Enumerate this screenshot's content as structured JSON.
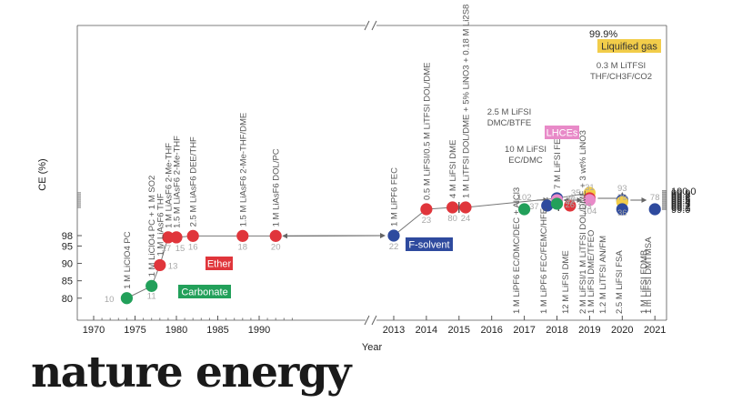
{
  "chart_data": {
    "type": "scatter",
    "xlabel": "Year",
    "ylabel": "CE (%)",
    "x_ticks_left": [
      "1970",
      "1975",
      "1980",
      "1985",
      "1990"
    ],
    "x_ticks_right": [
      "2013",
      "2014",
      "2015",
      "2016",
      "2017",
      "2018",
      "2019",
      "2020",
      "2021"
    ],
    "y_ticks_bottom": [
      "80",
      "85",
      "90",
      "95",
      "98"
    ],
    "y_ticks_top": [
      "99.0",
      "99.1",
      "99.2",
      "99.3",
      "99.4",
      "99.5",
      "99.6",
      "99.7",
      "99.8",
      "99.9",
      "100.0"
    ],
    "groups": [
      {
        "name": "Carbonate",
        "color": "#22a05a"
      },
      {
        "name": "Ether",
        "color": "#e0353b"
      },
      {
        "name": "F-solvent",
        "color": "#2e4a9e"
      },
      {
        "name": "LHCEs",
        "color": "#e88ac8"
      },
      {
        "name": "Liquified gas",
        "color": "#f2cd4a"
      }
    ],
    "points": [
      {
        "year": 1974,
        "ce": 80,
        "group": "Carbonate",
        "ref": "10",
        "label": "1 M LiClO4 PC"
      },
      {
        "year": 1977,
        "ce": 83.5,
        "group": "Carbonate",
        "ref": "11",
        "label": "1 M LiClO4 PC + 1 M SO2"
      },
      {
        "year": 1978,
        "ce": 89.5,
        "group": "Ether",
        "ref": "13",
        "label": "1 M LiAsF6 THF"
      },
      {
        "year": 1979,
        "ce": 97.5,
        "group": "Ether",
        "ref": "17",
        "label": "1 M LiAsF6 2-Me-THF"
      },
      {
        "year": 1980,
        "ce": 97.5,
        "group": "Ether",
        "ref": "15",
        "label": "1.5 M LiAsF6 2-Me-THF"
      },
      {
        "year": 1982,
        "ce": 97.9,
        "group": "Ether",
        "ref": "16",
        "label": "2.5 M LiAsF6 DEE/THF"
      },
      {
        "year": 1988,
        "ce": 97.9,
        "group": "Ether",
        "ref": "18",
        "label": "1.5 M LiAsF6 2-Me-THF/DME"
      },
      {
        "year": 1992,
        "ce": 97.9,
        "group": "Ether",
        "ref": "20",
        "label": "1 M LiAsF6 DOL/PC"
      },
      {
        "year": 2013.0,
        "ce": 98.0,
        "group": "F-solvent",
        "ref": "22",
        "label": "1 M LiPF6 FEC"
      },
      {
        "year": 2014.0,
        "ce": 99.0,
        "group": "Ether",
        "ref": "23",
        "label": "0.5 M LiFSI/0.5 M LiTFSI DOL/DME"
      },
      {
        "year": 2014.8,
        "ce": 99.1,
        "group": "Ether",
        "ref": "80",
        "label": "4 M LiFSI DME"
      },
      {
        "year": 2015.2,
        "ce": 99.1,
        "group": "Ether",
        "ref": "24",
        "label": "1 M LiTFSI DOL/DME + 5% LiNO3 + 0.18 M Li2S8"
      },
      {
        "year": 2017.0,
        "ce": 99.0,
        "group": "Carbonate",
        "ref": "102",
        "label": "1 M LiPF6 EC/DMC/DEC + AlCl3"
      },
      {
        "year": 2017.7,
        "ce": 99.2,
        "group": "F-solvent",
        "ref": "37",
        "label": "1 M LiPF6 FEC/FEMC/HFE"
      },
      {
        "year": 2018.0,
        "ce": 99.6,
        "group": "F-solvent",
        "ref": "30",
        "label": "7 M LiFSI FEC"
      },
      {
        "year": 2018.0,
        "ce": 99.5,
        "group": "LHCEs",
        "ref": "27",
        "label": "2.5 M LiFSI DMC/BTFE"
      },
      {
        "year": 2018.0,
        "ce": 99.3,
        "group": "Carbonate",
        "ref": "26",
        "label": "10 M LiFSI EC/DMC"
      },
      {
        "year": 2018.4,
        "ce": 99.2,
        "group": "Ether",
        "ref": "103",
        "label": "12 M LiFSI DME"
      },
      {
        "year": 2019.0,
        "ce": 99.9,
        "group": "Liquified gas",
        "ref": "35",
        "label": "0.3 M LiTFSI THF/CH3F/CO2"
      },
      {
        "year": 2019.0,
        "ce": 99.6,
        "group": "Ether",
        "ref": "31",
        "label": "1 M LiFSI DME/TFEO"
      },
      {
        "year": 2019.0,
        "ce": 99.5,
        "group": "LHCEs",
        "ref": "104",
        "label": "2 M LiFSI/1 M LiTFSI DOL/DME + 3 wt% LiNO3"
      },
      {
        "year": 2020.0,
        "ce": 99.5,
        "group": "F-solvent",
        "ref": "93",
        "label": "1 M LiFSI FDMB"
      },
      {
        "year": 2020.0,
        "ce": 99.4,
        "group": "Liquified gas",
        "ref": "36",
        "label": "1.2 M LiTFSI AN/FM"
      },
      {
        "year": 2020.0,
        "ce": 99.0,
        "group": "F-solvent",
        "ref": "79",
        "label": "2.5 M LiFSI FSA"
      },
      {
        "year": 2021.0,
        "ce": 99.0,
        "group": "F-solvent",
        "ref": "78",
        "label": "1 m LiFSI DMTMSA"
      }
    ],
    "annotations": [
      "99.9%"
    ],
    "grid": false
  },
  "brand": "nature energy"
}
